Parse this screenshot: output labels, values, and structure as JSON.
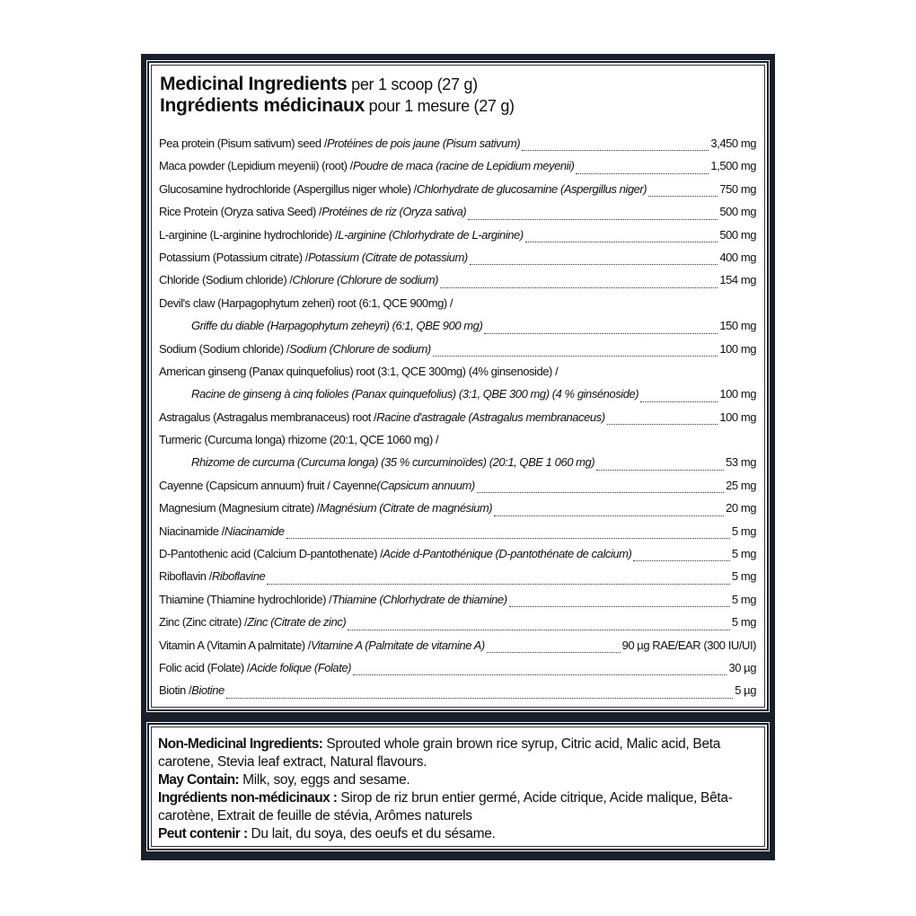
{
  "header": {
    "title_en": "Medicinal Ingredients",
    "serving_en": " per 1 scoop (27 g)",
    "title_fr": "Ingrédients médicinaux",
    "serving_fr": " pour 1 mesure (27 g)"
  },
  "ingredients": [
    {
      "en": "Pea protein (Pisum sativum) seed /",
      "fr": " Protéines de pois jaune (Pisum sativum)",
      "amount": "3,450 mg"
    },
    {
      "en": "Maca powder (Lepidium meyenii) (root) /",
      "fr": " Poudre de maca (racine de Lepidium meyenii)",
      "amount": "1,500 mg"
    },
    {
      "en": "Glucosamine hydrochloride (Aspergillus niger whole) /",
      "fr": " Chlorhydrate de glucosamine (Aspergillus niger)",
      "amount": "750  mg"
    },
    {
      "en": "Rice Protein (Oryza sativa Seed) /",
      "fr": " Protéines de riz (Oryza sativa)",
      "amount": "500 mg"
    },
    {
      "en": "L-arginine (L-arginine hydrochloride) /",
      "fr": " L-arginine (Chlorhydrate de L-arginine)",
      "amount": "500 mg"
    },
    {
      "en": "Potassium (Potassium citrate) /",
      "fr": " Potassium (Citrate de potassium)",
      "amount": "400 mg"
    },
    {
      "en": "Chloride (Sodium chloride) /",
      "fr": " Chlorure (Chlorure de sodium)",
      "amount": "154 mg"
    },
    {
      "en": "Devil's claw (Harpagophytum zeheri) root (6:1, QCE 900mg)  /",
      "fr": "Griffe du diable (Harpagophytum zeheyri) (6:1, QBE 900 mg)",
      "amount": "150 mg",
      "wrap": true
    },
    {
      "en": "Sodium (Sodium chloride) /",
      "fr": " Sodium (Chlorure de sodium)",
      "amount": "100 mg"
    },
    {
      "en": "American ginseng (Panax quinquefolius) root (3:1, QCE 300mg) (4% ginsenoside) /",
      "fr": "Racine de ginseng à cinq folioles (Panax quinquefolius) (3:1, QBE 300 mg) (4 % ginsénoside)",
      "amount": "100 mg",
      "wrap": true
    },
    {
      "en": "Astragalus (Astragalus membranaceus) root /",
      "fr": " Racine d'astragale (Astragalus membranaceus)",
      "amount": "100 mg"
    },
    {
      "en": "Turmeric (Curcuma longa) rhizome (20:1, QCE 1060 mg) /",
      "fr": "Rhizome de curcuma (Curcuma longa) (35 % curcuminoïdes) (20:1, QBE 1 060 mg)",
      "amount": "53 mg",
      "wrap": true
    },
    {
      "en": "Cayenne (Capsicum annuum) fruit / Cayenne",
      "fr": " (Capsicum annuum)",
      "amount": "25 mg"
    },
    {
      "en": "Magnesium (Magnesium citrate) /",
      "fr": " Magnésium (Citrate de magnésium)",
      "amount": "20 mg"
    },
    {
      "en": "Niacinamide /",
      "fr": " Niacinamide",
      "amount": "5 mg"
    },
    {
      "en": "D-Pantothenic acid (Calcium D-pantothenate) /",
      "fr": " Acide d-Pantothénique (D-pantothénate de calcium)",
      "amount": "5 mg"
    },
    {
      "en": "Riboflavin /",
      "fr": " Riboflavine",
      "amount": "5 mg"
    },
    {
      "en": "Thiamine (Thiamine hydrochloride) /",
      "fr": " Thiamine (Chlorhydrate de thiamine)",
      "amount": "5 mg"
    },
    {
      "en": "Zinc (Zinc citrate) /",
      "fr": " Zinc (Citrate de zinc)",
      "amount": "5 mg"
    },
    {
      "en": "Vitamin A (Vitamin A palmitate) /",
      "fr": " Vitamine A (Palmitate de vitamine A)",
      "amount": "90 µg RAE/EAR (300 IU/UI)"
    },
    {
      "en": "Folic acid (Folate) /",
      "fr": " Acide folique (Folate)",
      "amount": "30 µg"
    },
    {
      "en": "Biotin /",
      "fr": " Biotine",
      "amount": "5 µg"
    }
  ],
  "non_medicinal": {
    "nmi_label": "Non-Medicinal Ingredients:",
    "nmi_text": " Sprouted whole grain brown rice syrup, Citric acid, Malic acid, Beta carotene, Stevia leaf extract, Natural flavours.",
    "may_label": "May Contain:",
    "may_text": " Milk, soy, eggs and sesame.",
    "nmi_fr_label": "Ingrédients non-médicinaux :",
    "nmi_fr_text": "  Sirop de riz brun entier germé, Acide citrique, Acide malique, Bêta-carotène, Extrait de feuille de stévia, Arômes naturels",
    "may_fr_label": "Peut contenir :",
    "may_fr_text": " Du lait, du soya, des oeufs et du sésame."
  },
  "colors": {
    "frame": "#17202b",
    "text": "#111111"
  }
}
